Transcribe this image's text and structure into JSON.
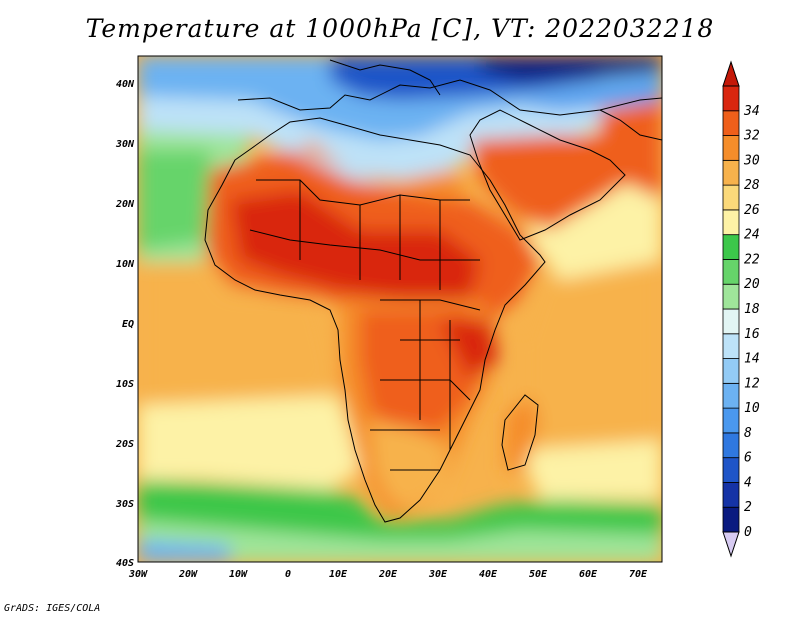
{
  "title": "Temperature at 1000hPa [C], VT: 2022032218",
  "footer": "GrADS: IGES/COLA",
  "map": {
    "lon_range": [
      -30,
      75
    ],
    "lat_range": [
      -40,
      45
    ],
    "lat_ticks": [
      "40N",
      "30N",
      "20N",
      "10N",
      "EQ",
      "10S",
      "20S",
      "30S",
      "40S"
    ],
    "lon_ticks": [
      "30W",
      "20W",
      "10W",
      "0",
      "10E",
      "20E",
      "30E",
      "40E",
      "50E",
      "60E",
      "70E"
    ]
  },
  "colorbar": {
    "levels": [
      "0",
      "2",
      "4",
      "6",
      "8",
      "10",
      "12",
      "14",
      "16",
      "18",
      "20",
      "22",
      "24",
      "26",
      "28",
      "30",
      "32",
      "34"
    ],
    "colors": [
      "#0a1a80",
      "#1533a6",
      "#1f55c8",
      "#2f78e0",
      "#4a98ee",
      "#6cb2f2",
      "#93cbf5",
      "#bde2f8",
      "#e2f5f4",
      "#9fe59a",
      "#66d46a",
      "#3cc74a",
      "#fdf2a6",
      "#fbd97a",
      "#f7b24c",
      "#f58d2a",
      "#ef5f1a",
      "#d9260f"
    ],
    "low_cap_color": "#d7cbf2",
    "high_cap_color": "#c41808"
  }
}
